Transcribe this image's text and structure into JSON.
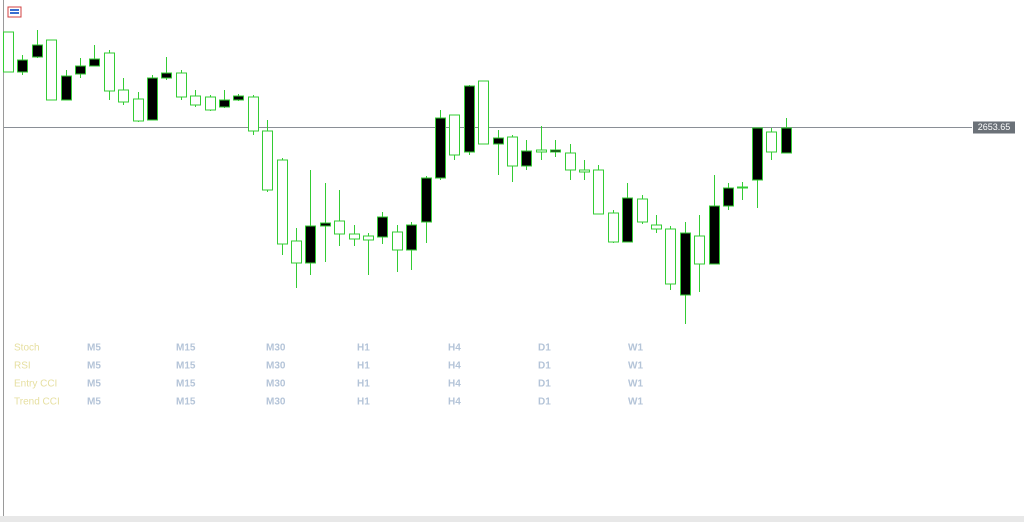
{
  "chart_data": {
    "type": "candlestick",
    "ohlc": [
      [
        2677.5,
        2677.5,
        2667.5,
        2667.5
      ],
      [
        2667.5,
        2671.75,
        2666.75,
        2670.5
      ],
      [
        2671.25,
        2678,
        2671,
        2674.25
      ],
      [
        2675.5,
        2675.5,
        2660.5,
        2660.5
      ],
      [
        2660.5,
        2668,
        2660.5,
        2666.5
      ],
      [
        2667,
        2671,
        2666,
        2669
      ],
      [
        2669,
        2674.25,
        2669,
        2670.75
      ],
      [
        2672.25,
        2673,
        2660.5,
        2662.75
      ],
      [
        2663,
        2666,
        2659.25,
        2660
      ],
      [
        2660.75,
        2662.5,
        2655,
        2655.25
      ],
      [
        2655.5,
        2666.75,
        2655.5,
        2666
      ],
      [
        2666,
        2671.25,
        2665.5,
        2667.25
      ],
      [
        2667.25,
        2668,
        2660.5,
        2661.25
      ],
      [
        2661.5,
        2663,
        2658.75,
        2659.25
      ],
      [
        2661.25,
        2661.75,
        2657.75,
        2658
      ],
      [
        2658.75,
        2663,
        2658.5,
        2660.5
      ],
      [
        2660.5,
        2662,
        2660.25,
        2661.5
      ],
      [
        2661.25,
        2661.75,
        2651.75,
        2652.75
      ],
      [
        2652.75,
        2655.5,
        2637.5,
        2638
      ],
      [
        2645.5,
        2646,
        2621.75,
        2624.5
      ],
      [
        2625.25,
        2628.5,
        2613.5,
        2619.75
      ],
      [
        2619.75,
        2643,
        2616.75,
        2629
      ],
      [
        2629,
        2639.75,
        2620,
        2629.75
      ],
      [
        2630.25,
        2638,
        2624,
        2627
      ],
      [
        2627,
        2629.25,
        2624,
        2625.75
      ],
      [
        2626.5,
        2627.25,
        2616.75,
        2625.5
      ],
      [
        2626.25,
        2632.5,
        2624.5,
        2631.25
      ],
      [
        2627.5,
        2629.25,
        2617.5,
        2623
      ],
      [
        2623,
        2630,
        2618,
        2629.25
      ],
      [
        2630,
        2641.5,
        2624.75,
        2641
      ],
      [
        2641,
        2658,
        2640.5,
        2656
      ],
      [
        2656.75,
        2656.75,
        2645.5,
        2646.75
      ],
      [
        2647.5,
        2664.25,
        2646.75,
        2664
      ],
      [
        2665.25,
        2665.25,
        2649.5,
        2649.5
      ],
      [
        2649.5,
        2653,
        2641.75,
        2651
      ],
      [
        2651.25,
        2651.75,
        2640,
        2644
      ],
      [
        2644,
        2650.5,
        2643,
        2647.75
      ],
      [
        2648,
        2654,
        2645.5,
        2647.5
      ],
      [
        2647.5,
        2650.5,
        2646.25,
        2648
      ],
      [
        2647.25,
        2649.5,
        2640.5,
        2643
      ],
      [
        2643,
        2645.5,
        2640.5,
        2642.5
      ],
      [
        2643,
        2644.25,
        2632,
        2632
      ],
      [
        2632.25,
        2633,
        2624.75,
        2625
      ],
      [
        2625,
        2639.75,
        2625,
        2636
      ],
      [
        2635.75,
        2636.75,
        2629.5,
        2630
      ],
      [
        2629.25,
        2631.75,
        2627.25,
        2628.25
      ],
      [
        2628.25,
        2629,
        2613,
        2614.5
      ],
      [
        2611.75,
        2630,
        2604.5,
        2627.25
      ],
      [
        2626.5,
        2631.75,
        2612.5,
        2619.5
      ],
      [
        2619.5,
        2641.75,
        2619.5,
        2634
      ],
      [
        2634,
        2639.75,
        2633,
        2638.5
      ],
      [
        2638.75,
        2640,
        2635.5,
        2638.5
      ],
      [
        2640.5,
        2653.5,
        2633.5,
        2653.5
      ],
      [
        2652.5,
        2653.5,
        2645.5,
        2647.5
      ],
      [
        2647.25,
        2656,
        2647.25,
        2653.5
      ]
    ],
    "ylim": [
      2603,
      2680.5
    ],
    "yticks": [
      2653.65
    ],
    "up_color": "#000000",
    "down_color": "#ffffff",
    "wick_color": "#33cc33",
    "price_line_color": "#8a8f96"
  },
  "indicator_panel": {
    "rows": [
      "Stoch",
      "RSI",
      "Entry CCI",
      "Trend CCI"
    ],
    "timeframes": [
      "M5",
      "M15",
      "M30",
      "H1",
      "H4",
      "D1",
      "W1"
    ]
  }
}
